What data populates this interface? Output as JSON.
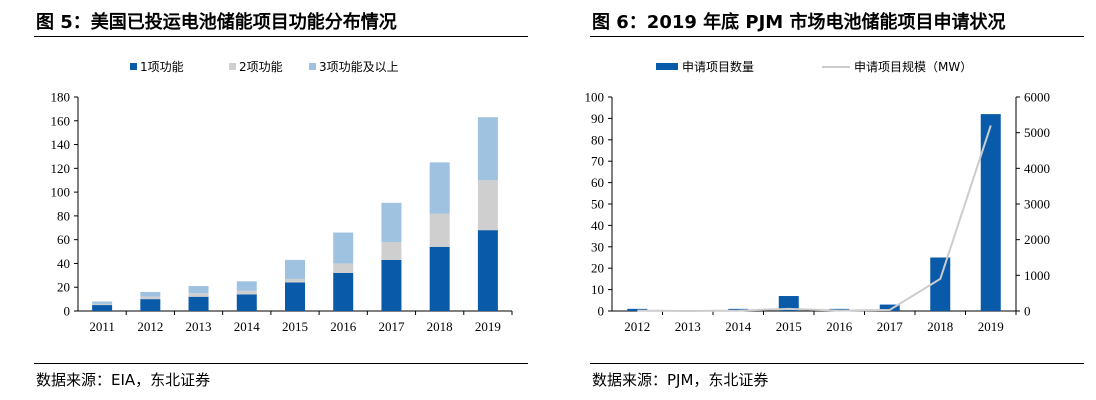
{
  "colors": {
    "dark_blue": "#0a5aaa",
    "light_gray": "#cfcfcf",
    "light_blue": "#9fc2e0",
    "line_gray": "#cccccc",
    "axis": "#000000"
  },
  "left": {
    "title": "图 5：美国已投运电池储能项目功能分布情况",
    "source": "数据来源：EIA，东北证券",
    "chart_data": {
      "type": "bar",
      "stacked": true,
      "categories": [
        "2011",
        "2012",
        "2013",
        "2014",
        "2015",
        "2016",
        "2017",
        "2018",
        "2019"
      ],
      "series": [
        {
          "name": "1项功能",
          "color": "#0a5aaa",
          "values": [
            5,
            10,
            12,
            14,
            24,
            32,
            43,
            54,
            68
          ]
        },
        {
          "name": "2项功能",
          "color": "#cfcfcf",
          "values": [
            1,
            2,
            3,
            3,
            3,
            8,
            15,
            28,
            42
          ]
        },
        {
          "name": "3项功能及以上",
          "color": "#9fc2e0",
          "values": [
            2,
            4,
            6,
            8,
            16,
            26,
            33,
            43,
            53
          ]
        }
      ],
      "ylim": [
        0,
        180
      ],
      "yticks": [
        0,
        20,
        40,
        60,
        80,
        100,
        120,
        140,
        160,
        180
      ],
      "legend_position": "top-center",
      "grid": false
    }
  },
  "right": {
    "title": "图 6：2019 年底 PJM 市场电池储能项目申请状况",
    "source": "数据来源：PJM，东北证券",
    "chart_data": {
      "type": "bar+line",
      "categories": [
        "2012",
        "2013",
        "2014",
        "2015",
        "2016",
        "2017",
        "2018",
        "2019"
      ],
      "series": [
        {
          "name": "申请项目数量",
          "kind": "bar",
          "axis": "left",
          "color": "#0a5aaa",
          "values": [
            1,
            0,
            1,
            7,
            1,
            3,
            25,
            92
          ]
        },
        {
          "name": "申请项目规模（MW）",
          "kind": "line",
          "axis": "right",
          "color": "#cccccc",
          "values": [
            10,
            0,
            10,
            60,
            10,
            30,
            900,
            5200
          ]
        }
      ],
      "ylim_left": [
        0,
        100
      ],
      "yticks_left": [
        0,
        10,
        20,
        30,
        40,
        50,
        60,
        70,
        80,
        90,
        100
      ],
      "ylim_right": [
        0,
        6000
      ],
      "yticks_right": [
        0,
        1000,
        2000,
        3000,
        4000,
        5000,
        6000
      ],
      "legend_position": "top-center",
      "grid": false
    }
  }
}
